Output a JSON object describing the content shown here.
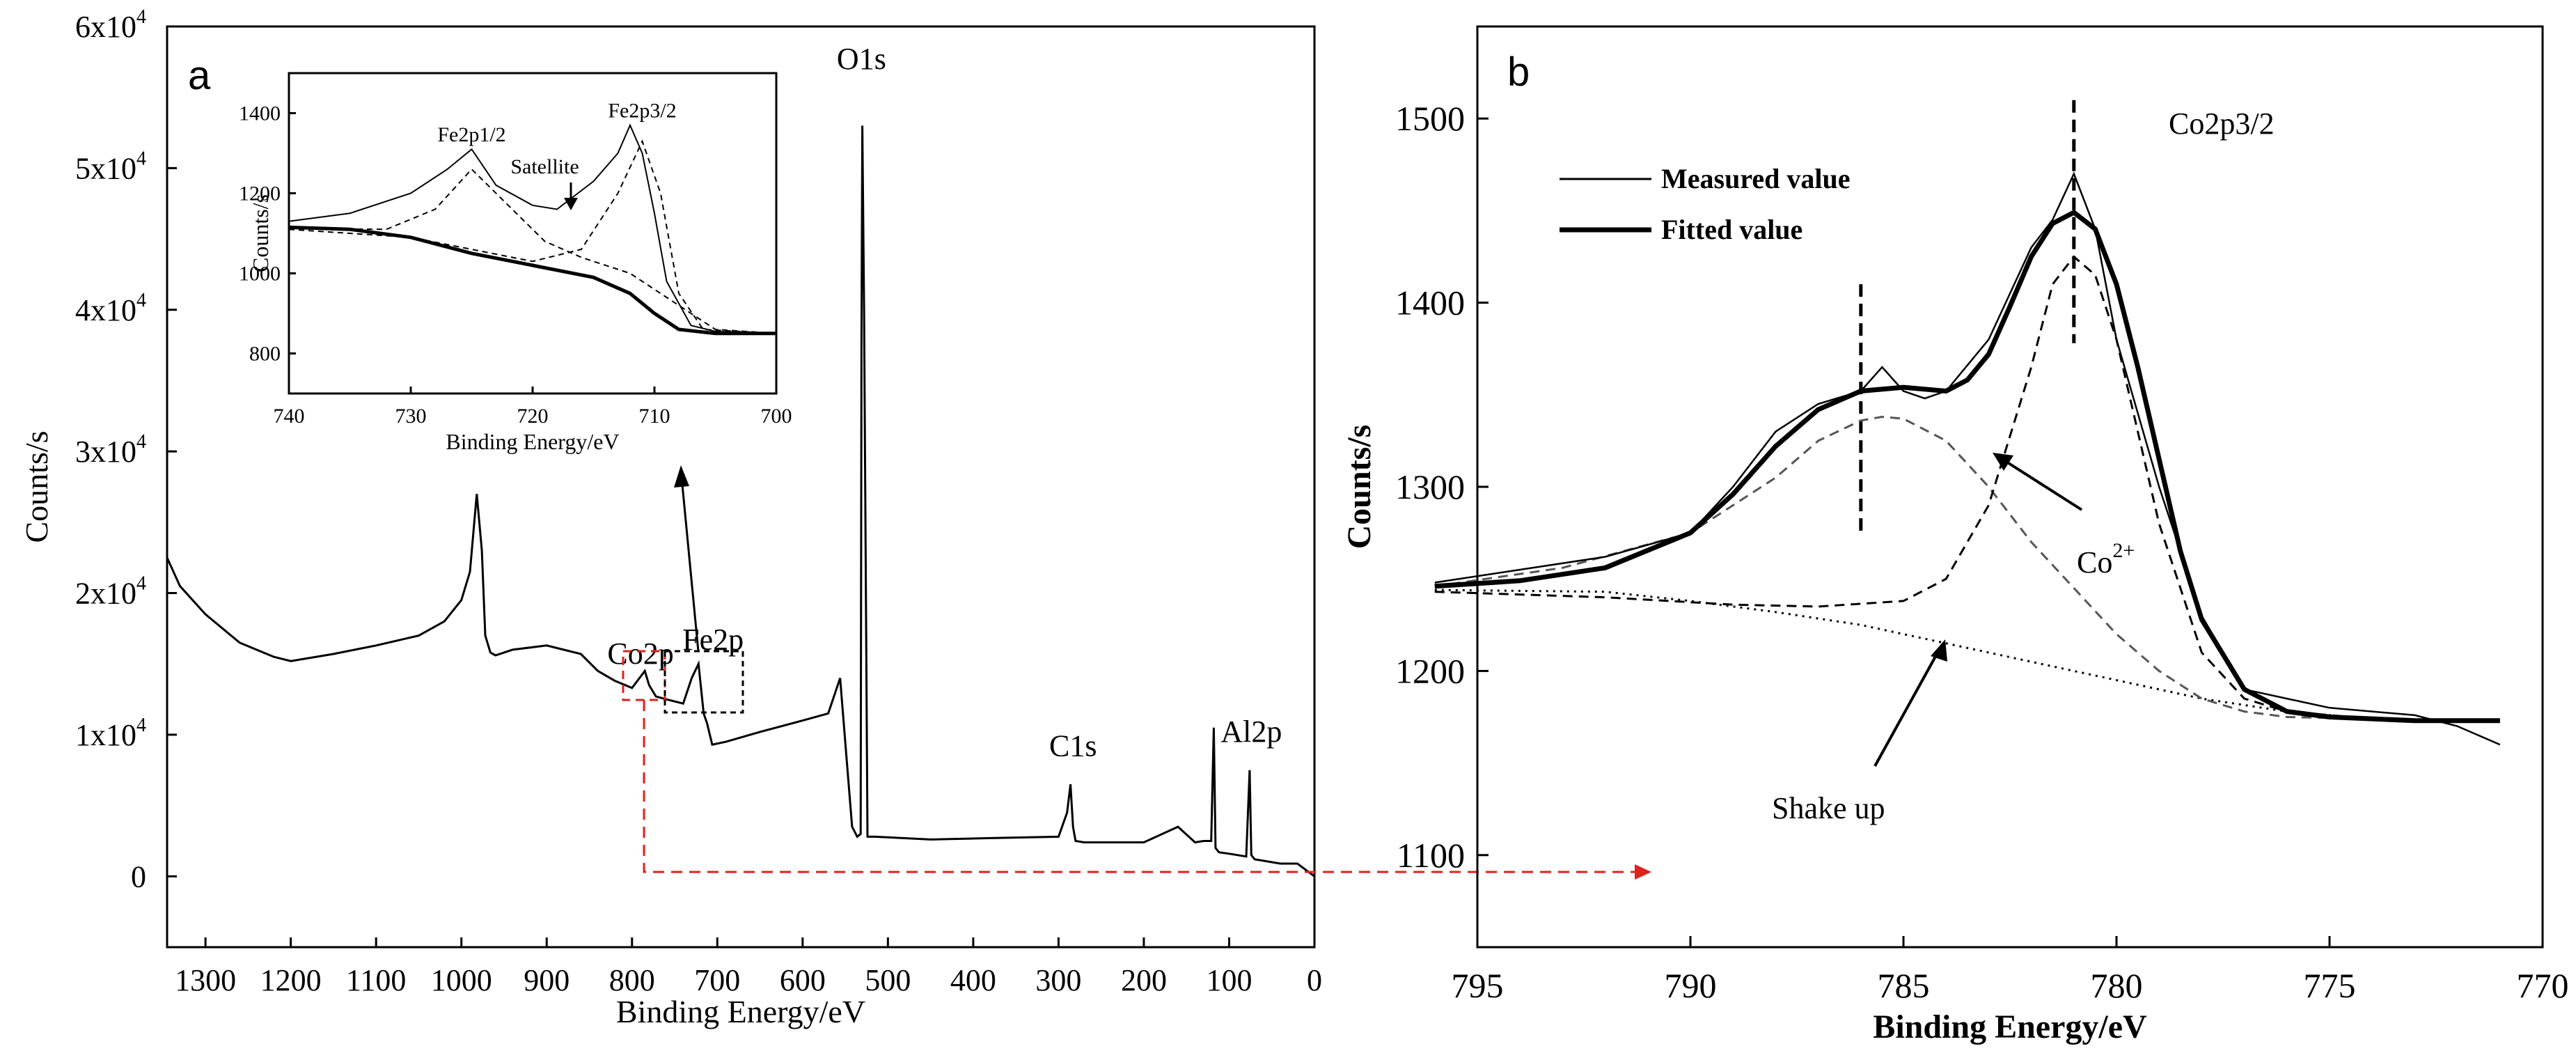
{
  "figure": {
    "panel_a_letter": "a",
    "panel_b_letter": "b"
  },
  "chart_data": [
    {
      "id": "panel-a",
      "type": "line",
      "title": "",
      "xlabel": "Binding Energy/eV",
      "ylabel": "Counts/s",
      "xlim": [
        1345,
        0
      ],
      "ylim": [
        -5000,
        60000
      ],
      "x_ticks": [
        1300,
        1200,
        1100,
        1000,
        900,
        800,
        700,
        600,
        500,
        400,
        300,
        200,
        100,
        0
      ],
      "x_tick_labels": [
        "1300",
        "1200",
        "1100",
        "1000",
        "900",
        "800",
        "700",
        "600",
        "500",
        "400",
        "300",
        "200",
        "100",
        "0"
      ],
      "y_ticks": [
        0,
        10000,
        20000,
        30000,
        40000,
        50000,
        60000
      ],
      "y_tick_labels": [
        "0",
        "1x10",
        "2x10",
        "3x10",
        "4x10",
        "5x10",
        "6x10"
      ],
      "y_tick_exponent": "4",
      "series": [
        {
          "name": "XPS survey spectrum",
          "x": [
            1345,
            1330,
            1300,
            1260,
            1220,
            1200,
            1150,
            1100,
            1050,
            1020,
            1000,
            990,
            982,
            976,
            972,
            966,
            960,
            940,
            900,
            860,
            840,
            820,
            800,
            785,
            780,
            772,
            760,
            740,
            730,
            722,
            716,
            712,
            708,
            706,
            690,
            650,
            600,
            570,
            556,
            548,
            542,
            536,
            532,
            531,
            530,
            528,
            524,
            515,
            450,
            380,
            300,
            290,
            286,
            283,
            280,
            270,
            200,
            160,
            140,
            130,
            121,
            118,
            116,
            112,
            100,
            80,
            76,
            74,
            70,
            60,
            40,
            20,
            0
          ],
          "y": [
            22500,
            20500,
            18500,
            16500,
            15500,
            15200,
            15700,
            16300,
            17000,
            18000,
            19500,
            21500,
            27000,
            23000,
            17000,
            15800,
            15600,
            16000,
            16300,
            15700,
            14500,
            13800,
            13300,
            14500,
            13500,
            12700,
            12500,
            12200,
            14000,
            15000,
            11500,
            10800,
            9800,
            9300,
            9500,
            10200,
            11000,
            11500,
            14000,
            8000,
            3500,
            2800,
            3000,
            38000,
            53000,
            40000,
            2800,
            2800,
            2600,
            2700,
            2800,
            4500,
            6500,
            3500,
            2500,
            2400,
            2400,
            3500,
            2400,
            2500,
            2500,
            10500,
            2000,
            1700,
            1600,
            1400,
            7500,
            1500,
            1200,
            1100,
            900,
            900,
            0
          ]
        }
      ],
      "annotations": [
        {
          "text": "O1s",
          "x": 531,
          "y": 57000
        },
        {
          "text": "C1s",
          "x": 283,
          "y": 8500
        },
        {
          "text": "Al2p",
          "x": 74,
          "y": 9500
        },
        {
          "text": "Co2p",
          "x": 790,
          "y": 15000
        },
        {
          "text": "Fe2p",
          "x": 705,
          "y": 16000
        }
      ],
      "inset": {
        "type": "line",
        "xlabel": "Binding Energy/eV",
        "ylabel": "Counts/s",
        "xlim": [
          740,
          700
        ],
        "ylim": [
          700,
          1500
        ],
        "x_ticks": [
          740,
          730,
          720,
          710,
          700
        ],
        "x_tick_labels": [
          "740",
          "730",
          "720",
          "710",
          "700"
        ],
        "y_ticks": [
          800,
          1000,
          1200,
          1400
        ],
        "y_tick_labels": [
          "800",
          "1000",
          "1200",
          "1400"
        ],
        "series": [
          {
            "name": "measured",
            "x": [
              740,
              735,
              730,
              727,
              725,
              723,
              720,
              718,
              715,
              713,
              712,
              711,
              710,
              709,
              707,
              705,
              700
            ],
            "y": [
              1130,
              1150,
              1200,
              1260,
              1310,
              1220,
              1170,
              1160,
              1230,
              1300,
              1370,
              1300,
              1150,
              980,
              870,
              855,
              850
            ]
          },
          {
            "name": "background",
            "x": [
              740,
              735,
              730,
              725,
              720,
              715,
              712,
              710,
              708,
              705,
              700
            ],
            "y": [
              1115,
              1110,
              1090,
              1050,
              1020,
              990,
              950,
              900,
              860,
              850,
              850
            ]
          },
          {
            "name": "Fe2p3/2 component",
            "x": [
              740,
              730,
              720,
              716,
              713,
              711,
              709.5,
              708,
              706,
              700
            ],
            "y": [
              1110,
              1090,
              1030,
              1060,
              1200,
              1330,
              1200,
              950,
              860,
              850
            ]
          },
          {
            "name": "Fe2p1/2 component",
            "x": [
              740,
              732,
              728,
              725,
              722,
              719,
              716,
              712,
              705,
              700
            ],
            "y": [
              1112,
              1110,
              1160,
              1260,
              1170,
              1080,
              1040,
              1000,
              860,
              850
            ]
          }
        ],
        "annotations": [
          {
            "text": "Fe2p1/2",
            "x": 725,
            "y": 1330
          },
          {
            "text": "Satellite",
            "x": 719,
            "y": 1250
          },
          {
            "text": "Fe2p3/2",
            "x": 711,
            "y": 1390
          }
        ]
      }
    },
    {
      "id": "panel-b",
      "type": "line",
      "title": "Co2p3/2",
      "xlabel": "Binding Energy/eV",
      "ylabel": "Counts/s",
      "xlim": [
        795,
        770
      ],
      "ylim": [
        1050,
        1550
      ],
      "x_ticks": [
        795,
        790,
        785,
        780,
        775,
        770
      ],
      "x_tick_labels": [
        "795",
        "790",
        "785",
        "780",
        "775",
        "770"
      ],
      "y_ticks": [
        1100,
        1200,
        1300,
        1400,
        1500
      ],
      "y_tick_labels": [
        "1100",
        "1200",
        "1300",
        "1400",
        "1500"
      ],
      "legend": [
        {
          "label": "Measured value",
          "style": "thin"
        },
        {
          "label": "Fitted value",
          "style": "thick"
        }
      ],
      "series": [
        {
          "name": "Measured value",
          "x": [
            796,
            794,
            792,
            790,
            789,
            788,
            787,
            786,
            785.5,
            785,
            784.5,
            784,
            783,
            782,
            781.5,
            781,
            780.5,
            780,
            779,
            778,
            777,
            776,
            775,
            774,
            773,
            772,
            771
          ],
          "y": [
            1248,
            1255,
            1262,
            1275,
            1300,
            1330,
            1345,
            1352,
            1365,
            1352,
            1348,
            1352,
            1380,
            1430,
            1445,
            1470,
            1440,
            1380,
            1300,
            1230,
            1190,
            1185,
            1180,
            1178,
            1176,
            1170,
            1160
          ]
        },
        {
          "name": "Fitted value",
          "x": [
            796,
            794,
            792,
            790,
            789,
            788,
            787,
            786,
            785,
            784,
            783.5,
            783,
            782.5,
            782,
            781.5,
            781,
            780.5,
            780,
            779.5,
            779,
            778.5,
            778,
            777,
            776,
            775,
            774,
            773,
            772,
            771
          ],
          "y": [
            1246,
            1249,
            1256,
            1275,
            1296,
            1322,
            1342,
            1352,
            1354,
            1352,
            1358,
            1372,
            1398,
            1425,
            1443,
            1449,
            1440,
            1410,
            1365,
            1315,
            1265,
            1228,
            1190,
            1178,
            1175,
            1174,
            1173,
            1173,
            1173
          ]
        },
        {
          "name": "Co2+ component",
          "x": [
            796,
            792,
            789,
            787,
            785,
            784,
            783,
            782,
            781.5,
            781,
            780.5,
            780,
            779.5,
            779,
            778,
            777,
            776,
            774,
            771
          ],
          "y": [
            1243,
            1240,
            1236,
            1235,
            1238,
            1250,
            1290,
            1365,
            1410,
            1425,
            1415,
            1380,
            1330,
            1280,
            1210,
            1185,
            1178,
            1174,
            1173
          ]
        },
        {
          "name": "Shake up component",
          "x": [
            796,
            793,
            790,
            788,
            787,
            786,
            785.5,
            785,
            784,
            783,
            782,
            781,
            780,
            779,
            778,
            777,
            776,
            774,
            771
          ],
          "y": [
            1246,
            1256,
            1275,
            1305,
            1325,
            1336,
            1338,
            1337,
            1325,
            1300,
            1270,
            1245,
            1220,
            1200,
            1185,
            1178,
            1175,
            1174,
            1173
          ]
        },
        {
          "name": "Background",
          "x": [
            796,
            792,
            790,
            788,
            786,
            784,
            782,
            780,
            778,
            776,
            774,
            772,
            771
          ],
          "y": [
            1244,
            1243,
            1238,
            1232,
            1225,
            1215,
            1205,
            1195,
            1185,
            1178,
            1174,
            1173,
            1173
          ]
        }
      ],
      "annotations": [
        {
          "text": "Co",
          "sup": "2+",
          "x": 781.5,
          "y": 1290
        },
        {
          "text": "Shake up",
          "x": 786,
          "y": 1120
        }
      ],
      "reference_lines_x": [
        786,
        781
      ]
    }
  ]
}
